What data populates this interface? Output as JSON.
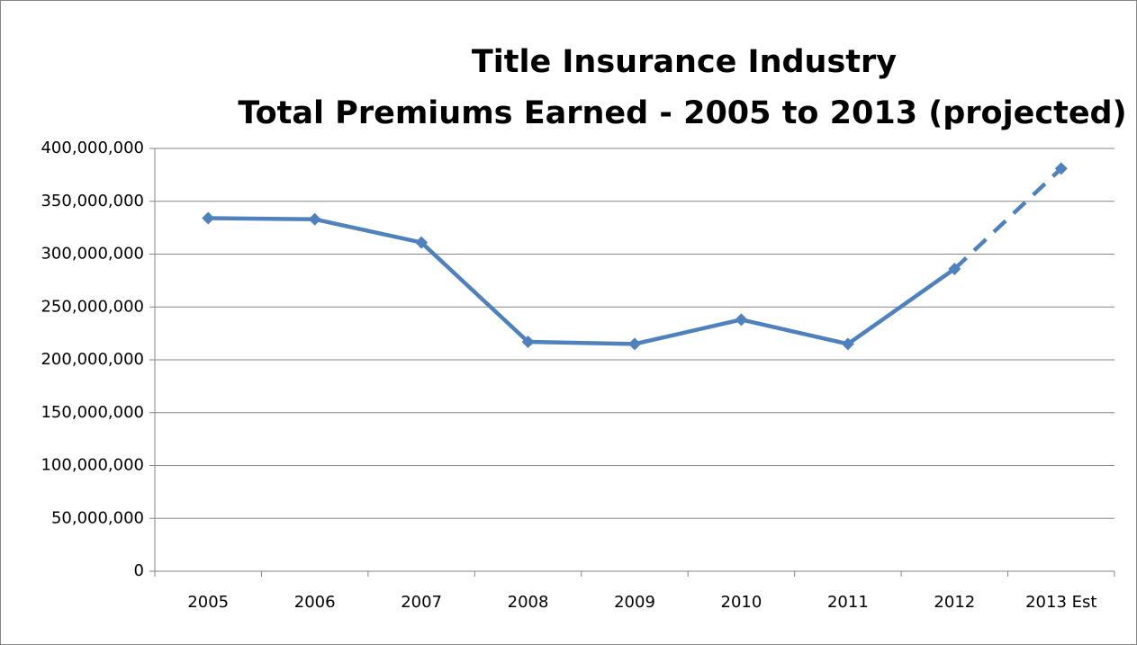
{
  "chart_data": {
    "type": "line",
    "title": [
      "Title Insurance Industry",
      "Total Premiums Earned - 2005 to 2013 (projected)"
    ],
    "categories": [
      "2005",
      "2006",
      "2007",
      "2008",
      "2009",
      "2010",
      "2011",
      "2012",
      "2013 Est"
    ],
    "values": [
      334000000,
      333000000,
      311000000,
      217000000,
      215000000,
      238000000,
      215000000,
      286000000,
      381000000
    ],
    "color": "#4f81bd",
    "dashed_last_segment": true,
    "ylim": [
      0,
      400000000
    ],
    "yticks": [
      0,
      {
        "value": 50000000,
        "label": "50,000,000"
      },
      {
        "value": 100000000,
        "label": "100,000,000"
      },
      {
        "value": 150000000,
        "label": "150,000,000"
      },
      {
        "value": 200000000,
        "label": "200,000,000"
      },
      {
        "value": 250000000,
        "label": "250,000,000"
      },
      {
        "value": 300000000,
        "label": "300,000,000"
      },
      {
        "value": 350000000,
        "label": "350,000,000"
      },
      {
        "value": 400000000,
        "label": "400,000,000"
      }
    ],
    "grid": true
  }
}
